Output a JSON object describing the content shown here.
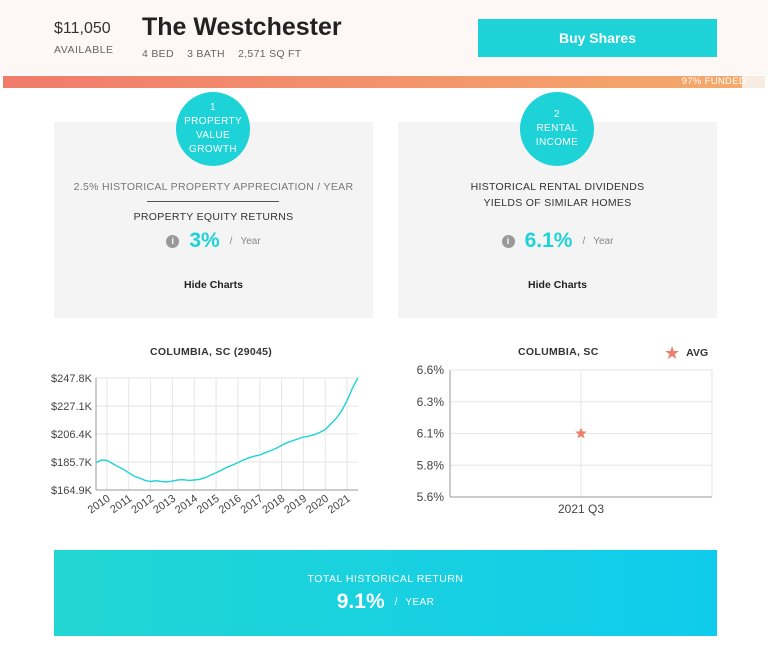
{
  "header": {
    "price": "$11,050",
    "price_label": "AVAILABLE",
    "title": "The Westchester",
    "beds": "4 BED",
    "baths": "3 BATH",
    "sqft": "2,571 SQ FT",
    "buy_label": "Buy Shares",
    "funded_label": "97% FUNDED",
    "funded_fraction": 0.97,
    "accent_color": "#1dd3d7"
  },
  "cards": [
    {
      "number": "1",
      "title": "PROPERTY VALUE GROWTH",
      "historical": "2.5% HISTORICAL PROPERTY APPRECIATION / YEAR",
      "subtitle": "PROPERTY EQUITY RETURNS",
      "rate": "3%",
      "separator": "/",
      "unit": "Year",
      "toggle_label": "Hide Charts",
      "info_icon": "info-icon"
    },
    {
      "number": "2",
      "title": "RENTAL INCOME",
      "line1": "HISTORICAL RENTAL DIVIDENDS",
      "line2": "YIELDS OF SIMILAR HOMES",
      "rate": "6.1%",
      "separator": "/",
      "unit": "Year",
      "toggle_label": "Hide Charts",
      "info_icon": "info-icon"
    }
  ],
  "chart_data": [
    {
      "type": "line",
      "title": "COLUMBIA, SC (29045)",
      "xlabel": "",
      "ylabel": "",
      "x": [
        2009.5,
        2009.75,
        2010,
        2010.25,
        2010.5,
        2010.75,
        2011,
        2011.25,
        2011.5,
        2011.75,
        2012,
        2012.25,
        2012.5,
        2012.75,
        2013,
        2013.25,
        2013.5,
        2013.75,
        2014,
        2014.25,
        2014.5,
        2014.75,
        2015,
        2015.25,
        2015.5,
        2015.75,
        2016,
        2016.25,
        2016.5,
        2016.75,
        2017,
        2017.25,
        2017.5,
        2017.75,
        2018,
        2018.25,
        2018.5,
        2018.75,
        2019,
        2019.25,
        2019.5,
        2019.75,
        2020,
        2020.25,
        2020.5,
        2020.75,
        2021,
        2021.25,
        2021.5
      ],
      "values": [
        185.2,
        187.1,
        186.8,
        184.5,
        182.3,
        180.2,
        177.6,
        175.2,
        173.7,
        172.0,
        171.2,
        171.8,
        171.2,
        170.9,
        171.5,
        172.4,
        172.5,
        172.0,
        172.3,
        172.8,
        174.0,
        175.9,
        177.6,
        179.6,
        181.7,
        183.3,
        185.2,
        187.1,
        188.7,
        189.9,
        190.8,
        192.5,
        194.1,
        195.7,
        197.9,
        199.9,
        201.3,
        202.7,
        204.1,
        204.7,
        205.9,
        207.5,
        209.6,
        213.7,
        218.0,
        223.4,
        231.2,
        240.3,
        248.0
      ],
      "ylim": [
        164.9,
        247.8
      ],
      "y_ticks": [
        "$164.9K",
        "$185.7K",
        "$206.4K",
        "$227.1K",
        "$247.8K"
      ],
      "x_ticks": [
        "2010",
        "2011",
        "2012",
        "2013",
        "2014",
        "2015",
        "2016",
        "2017",
        "2018",
        "2019",
        "2020",
        "2021"
      ],
      "line_color": "#1dd3d7",
      "grid": true
    },
    {
      "type": "scatter",
      "title": "COLUMBIA, SC",
      "categories": [
        "2021 Q3"
      ],
      "series": [
        {
          "name": "AVG",
          "values": [
            6.1
          ],
          "marker": "star",
          "color": "#ee7d6a"
        }
      ],
      "ylim": [
        5.6,
        6.6
      ],
      "y_ticks": [
        "5.6%",
        "5.8%",
        "6.1%",
        "6.3%",
        "6.6%"
      ],
      "legend": "top-right",
      "grid": true
    }
  ],
  "total": {
    "label": "TOTAL HISTORICAL RETURN",
    "value": "9.1%",
    "separator": "/",
    "unit": "YEAR"
  }
}
